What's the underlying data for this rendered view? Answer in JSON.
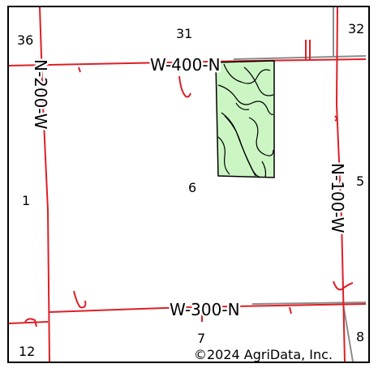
{
  "map": {
    "section_labels": [
      "36",
      "31",
      "32",
      "1",
      "6",
      "5",
      "12",
      "7",
      "8"
    ],
    "roads": {
      "top": "W-400-N",
      "bottom": "W-300-N",
      "left": "N-200-W",
      "right": "N-100-W"
    },
    "copyright": "©2024 AgriData, Inc.",
    "colors": {
      "road": "#dd1f26",
      "gray_line": "#8c8c8c",
      "field_fill": "#ccf5c4",
      "contour": "#000000"
    }
  }
}
